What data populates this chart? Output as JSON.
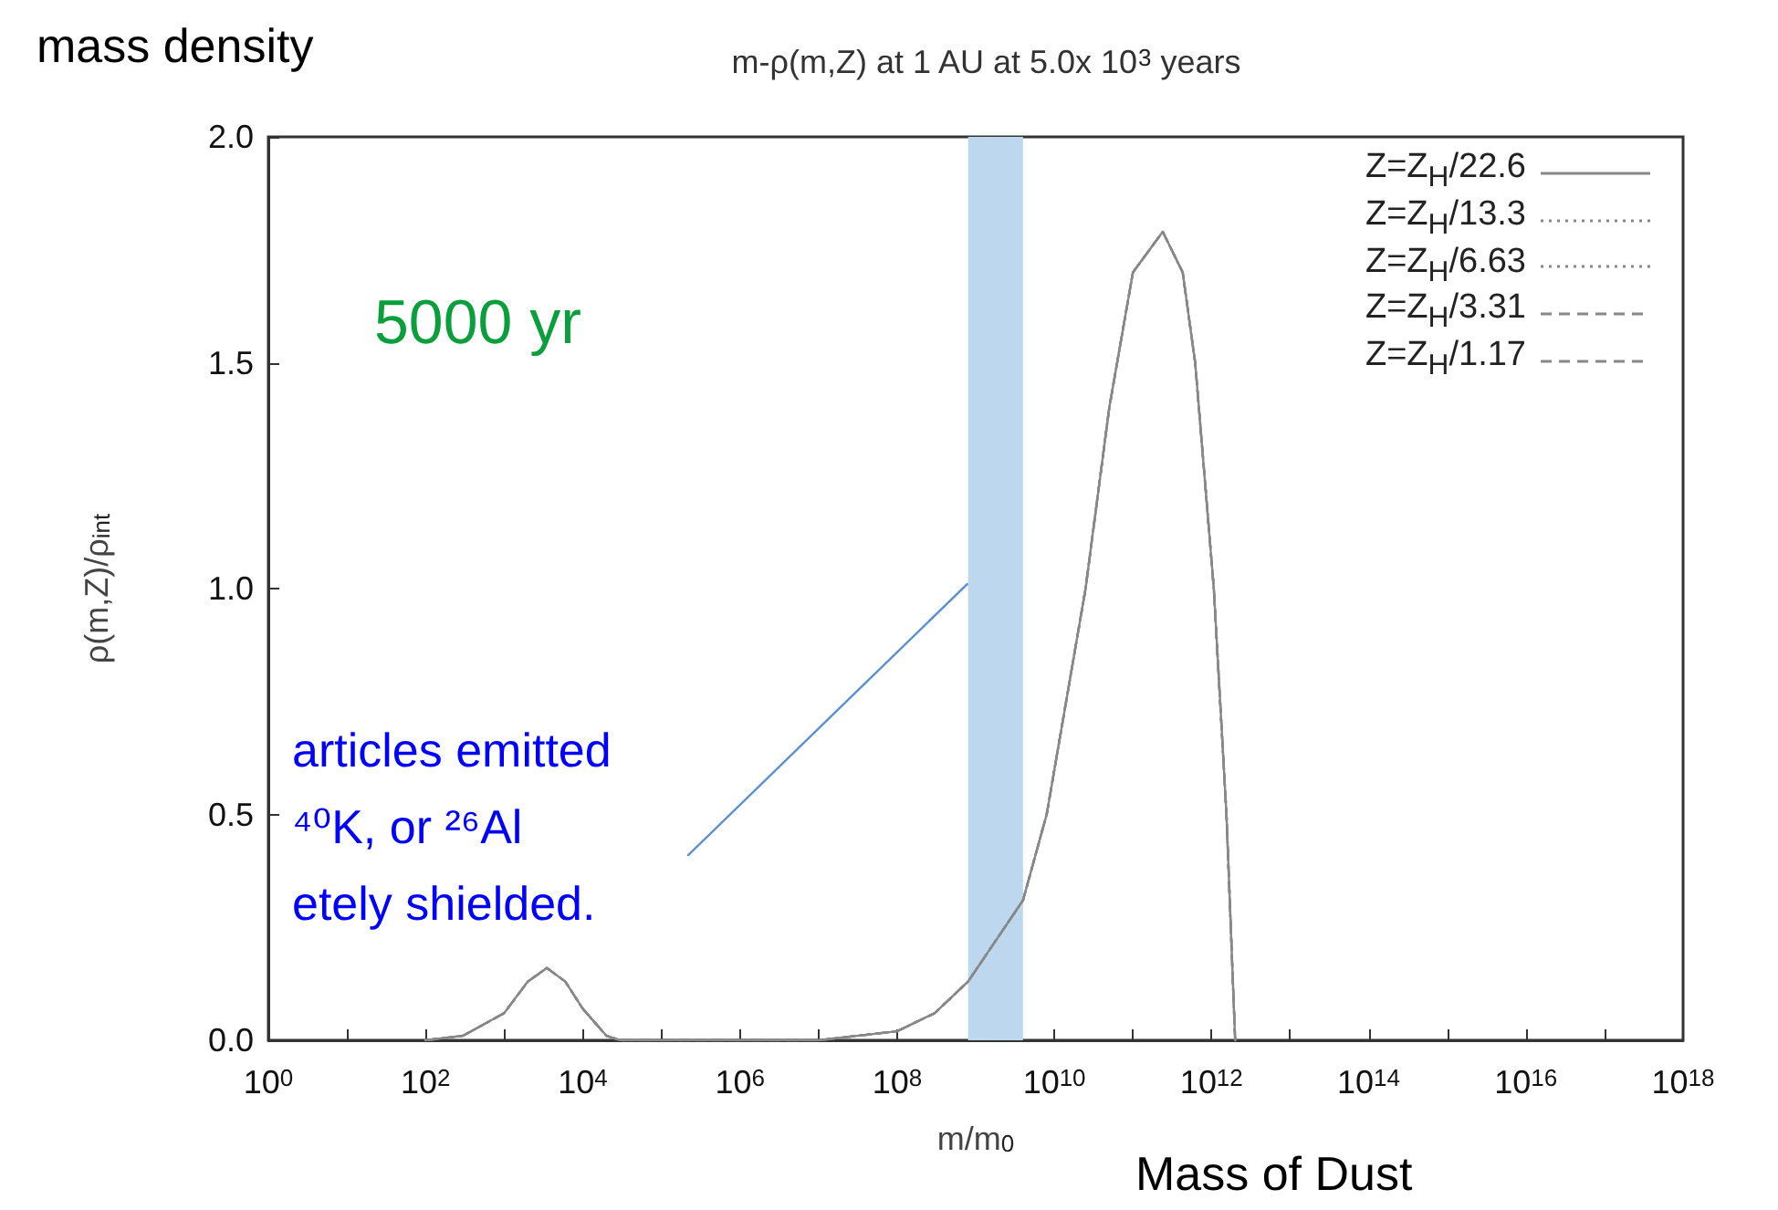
{
  "chart_data": {
    "type": "line",
    "title": "m-ρ(m,Z) at 1 AU at 5.0x 10$^{3}$ years",
    "xlabel": "m/m$_{0}$",
    "ylabel": "ρ(m,Z)/ρ$_{int}$",
    "annotations": [
      "mass density",
      "5000 yr",
      "articles emitted",
      "⁴⁰K, or ²⁶Al",
      "etely shielded.",
      "Mass of Dust"
    ],
    "log": "x",
    "x": [
      100.0,
      300.0,
      1000.0,
      2000.0,
      3500.0,
      6000.0,
      10000.0,
      20000.0,
      30000.0,
      10000000.0,
      100000000.0,
      300000000.0,
      800000000.0,
      4000000000.0,
      8000000000.0,
      25000000000.0,
      50000000000.0,
      100000000000.0,
      240000000000.0,
      430000000000.0,
      620000000000.0,
      1070000000000.0,
      1550000000000.0,
      2000000000000.0
    ],
    "series": [
      {
        "name": "Z=Z$_{H}$/22.6",
        "color": "#888888",
        "line_style": "solid",
        "values": [
          0,
          0.01,
          0.06,
          0.13,
          0.16,
          0.13,
          0.07,
          0.01,
          0,
          0,
          0.02,
          0.06,
          0.13,
          0.31,
          0.5,
          1.0,
          1.4,
          1.7,
          1.79,
          1.7,
          1.5,
          1.0,
          0.5,
          0
        ]
      },
      {
        "name": "Z=Z$_{H}$/13.3",
        "color": "#888888",
        "line_style": "dotted",
        "values": [
          0,
          0.01,
          0.06,
          0.13,
          0.16,
          0.13,
          0.07,
          0.01,
          0,
          0,
          0.02,
          0.06,
          0.13,
          0.31,
          0.5,
          1.0,
          1.4,
          1.7,
          1.79,
          1.7,
          1.5,
          1.0,
          0.5,
          0
        ]
      },
      {
        "name": "Z=Z$_{H}$/6.63",
        "color": "#888888",
        "line_style": "dotted",
        "values": [
          0,
          0.01,
          0.06,
          0.13,
          0.16,
          0.13,
          0.07,
          0.01,
          0,
          0,
          0.02,
          0.06,
          0.13,
          0.31,
          0.5,
          1.0,
          1.4,
          1.7,
          1.79,
          1.7,
          1.5,
          1.0,
          0.5,
          0
        ]
      },
      {
        "name": "Z=Z$_{H}$/3.31",
        "color": "#888888",
        "line_style": "dashed",
        "values": [
          0,
          0.01,
          0.06,
          0.13,
          0.16,
          0.13,
          0.07,
          0.01,
          0,
          0,
          0.02,
          0.06,
          0.13,
          0.31,
          0.5,
          1.0,
          1.4,
          1.7,
          1.79,
          1.7,
          1.5,
          1.0,
          0.5,
          0
        ]
      },
      {
        "name": "Z=Z$_{H}$/1.17",
        "color": "#888888",
        "line_style": "dashed",
        "values": [
          0,
          0.01,
          0.06,
          0.13,
          0.16,
          0.13,
          0.07,
          0.01,
          0,
          0,
          0.02,
          0.06,
          0.13,
          0.31,
          0.5,
          1.0,
          1.4,
          1.7,
          1.79,
          1.7,
          1.5,
          1.0,
          0.5,
          0
        ]
      },
      {
        "type": "line",
        "color": "#5b8fd0",
        "line_style": "solid",
        "x": [
          220000.0,
          780000000.0
        ],
        "values": [
          0.41,
          1.01
        ]
      }
    ],
    "bands": [
      {
        "axis": "x",
        "from": 800000000.0,
        "to": 4000000000.0,
        "color": "#bdd7ee"
      }
    ],
    "xlim": [
      1,
      1e+18
    ],
    "xticks": [
      {
        "value": 1,
        "label": "10$^{0}$"
      },
      {
        "value": 10.0,
        "label": null
      },
      {
        "value": 100.0,
        "label": "10$^{2}$"
      },
      {
        "value": 1000.0,
        "label": null
      },
      {
        "value": 10000.0,
        "label": "10$^{4}$"
      },
      {
        "value": 100000.0,
        "label": null
      },
      {
        "value": 1000000.0,
        "label": "10$^{6}$"
      },
      {
        "value": 10000000.0,
        "label": null
      },
      {
        "value": 100000000.0,
        "label": "10$^{8}$"
      },
      {
        "value": 1000000000.0,
        "label": null
      },
      {
        "value": 10000000000.0,
        "label": "10$^{10}$"
      },
      {
        "value": 100000000000.0,
        "label": null
      },
      {
        "value": 1000000000000.0,
        "label": "10$^{12}$"
      },
      {
        "value": 10000000000000.0,
        "label": null
      },
      {
        "value": 100000000000000.0,
        "label": "10$^{14}$"
      },
      {
        "value": 1000000000000000.0,
        "label": null
      },
      {
        "value": 1e+16,
        "label": "10$^{16}$"
      },
      {
        "value": 1e+17,
        "label": null
      },
      {
        "value": 1e+18,
        "label": "10$^{18}$"
      }
    ],
    "ylim": [
      0,
      2
    ],
    "yticks": [
      {
        "value": 0,
        "label": "0.0"
      },
      {
        "value": 0.5,
        "label": "0.5"
      },
      {
        "value": 1,
        "label": "1.0"
      },
      {
        "value": 1.5,
        "label": "1.5"
      },
      {
        "value": 2,
        "label": "2.0"
      }
    ],
    "grid": false,
    "legend": "top right"
  }
}
